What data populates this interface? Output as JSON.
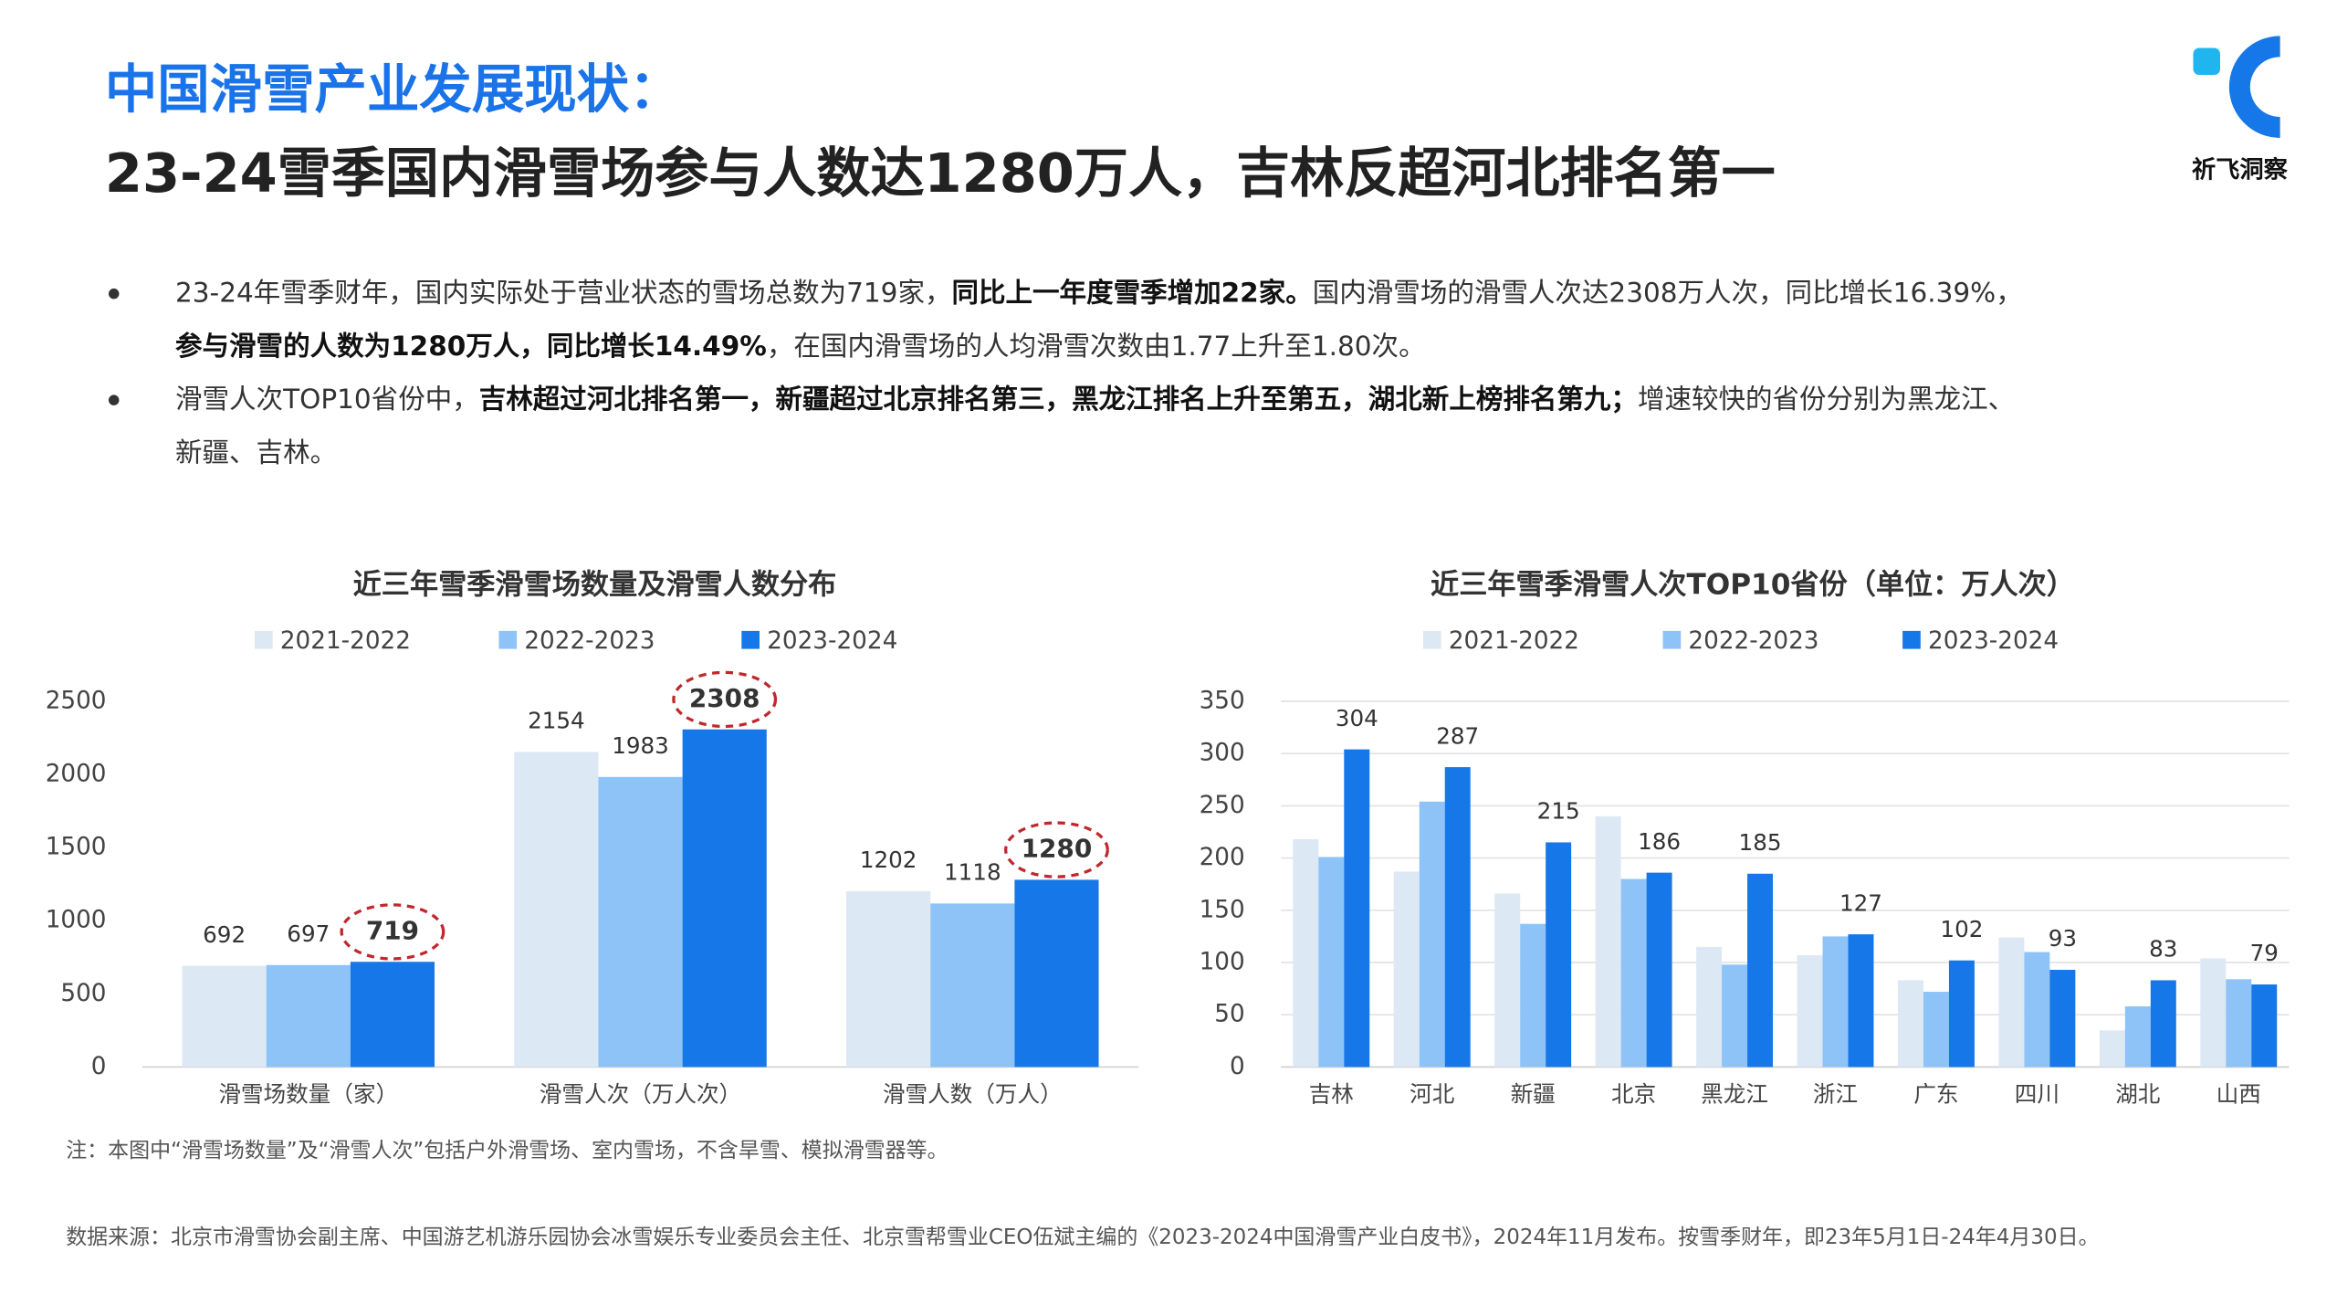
{
  "header": {
    "title": "中国滑雪产业发展现状：",
    "subtitle": "23-24雪季国内滑雪场参与人数达1280万人，吉林反超河北排名第一"
  },
  "logo": {
    "text": "祈飞洞察"
  },
  "bullets": [
    {
      "lines": [
        [
          {
            "text": "23-24年雪季财年，国内实际处于营业状态的雪场总数为719家，",
            "bold": false
          },
          {
            "text": "同比上一年度雪季增加22家。",
            "bold": true
          },
          {
            "text": "国内滑雪场的滑雪人次达2308万人次，同比增长16.39%，",
            "bold": false
          }
        ],
        [
          {
            "text": "参与滑雪的人数为1280万人，同比增长14.49%",
            "bold": true
          },
          {
            "text": "，在国内滑雪场的人均滑雪次数由1.77上升至1.80次。",
            "bold": false
          }
        ]
      ]
    },
    {
      "lines": [
        [
          {
            "text": "滑雪人次TOP10省份中，",
            "bold": false
          },
          {
            "text": "吉林超过河北排名第一，新疆超过北京排名第三，黑龙江排名上升至第五，湖北新上榜排名第九；",
            "bold": true
          },
          {
            "text": "增速较快的省份分别为黑龙江、",
            "bold": false
          }
        ],
        [
          {
            "text": "新疆、吉林。",
            "bold": false
          }
        ]
      ]
    }
  ],
  "chart_data": [
    {
      "type": "bar",
      "title": "近三年雪季滑雪场数量及滑雪人数分布",
      "categories": [
        "滑雪场数量（家）",
        "滑雪人次（万人次）",
        "滑雪人数（万人）"
      ],
      "series": [
        {
          "name": "2021-2022",
          "color": "#dde8f5",
          "values": [
            692,
            2154,
            1202
          ],
          "data_labels": true
        },
        {
          "name": "2022-2023",
          "color": "#8ec3f7",
          "values": [
            697,
            1983,
            1118
          ],
          "data_labels": true
        },
        {
          "name": "2023-2024",
          "color": "#1677e8",
          "values": [
            719,
            2308,
            1280
          ],
          "data_labels": true,
          "highlight": true
        }
      ],
      "ylim": [
        0,
        2500
      ],
      "yticks": [
        0,
        500,
        1000,
        1500,
        2000,
        2500
      ],
      "grid": false,
      "legend": "top"
    },
    {
      "type": "bar",
      "title": "近三年雪季滑雪人次TOP10省份（单位：万人次）",
      "categories": [
        "吉林",
        "河北",
        "新疆",
        "北京",
        "黑龙江",
        "浙江",
        "广东",
        "四川",
        "湖北",
        "山西"
      ],
      "series": [
        {
          "name": "2021-2022",
          "color": "#dde8f5",
          "values": [
            218,
            187,
            166,
            240,
            115,
            107,
            83,
            124,
            35,
            104
          ],
          "data_labels": false
        },
        {
          "name": "2022-2023",
          "color": "#8ec3f7",
          "values": [
            201,
            254,
            137,
            180,
            98,
            125,
            72,
            110,
            58,
            84
          ],
          "data_labels": false
        },
        {
          "name": "2023-2024",
          "color": "#1677e8",
          "values": [
            304,
            287,
            215,
            186,
            185,
            127,
            102,
            93,
            83,
            79
          ],
          "data_labels": true
        }
      ],
      "ylim": [
        0,
        350
      ],
      "yticks": [
        0,
        50,
        100,
        150,
        200,
        250,
        300,
        350
      ],
      "grid": true,
      "legend": "top"
    }
  ],
  "note": "注：本图中“滑雪场数量”及“滑雪人次”包括户外滑雪场、室内雪场，不含旱雪、模拟滑雪器等。",
  "source": "数据来源：北京市滑雪协会副主席、中国游艺机游乐园协会冰雪娱乐专业委员会主任、北京雪帮雪业CEO伍斌主编的《2023-2024中国滑雪产业白皮书》，2024年11月发布。按雪季财年，即23年5月1日-24年4月30日。"
}
